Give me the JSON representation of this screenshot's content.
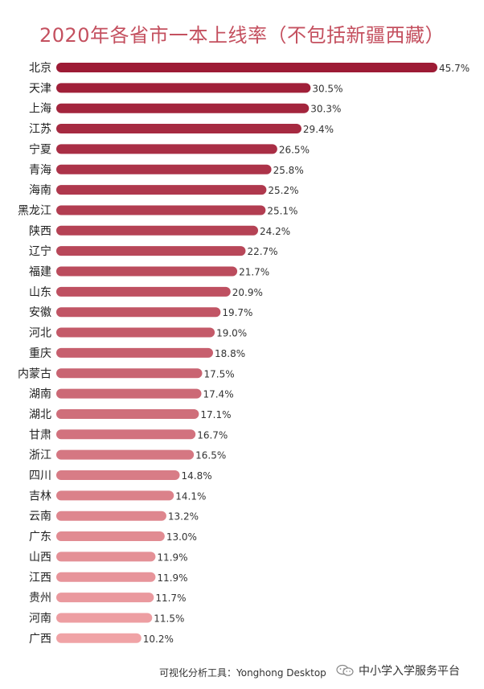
{
  "chart_data": {
    "type": "bar",
    "orientation": "horizontal",
    "title": "2020年各省市一本上线率（不包括新疆西藏）",
    "categories": [
      "北京",
      "天津",
      "上海",
      "江苏",
      "宁夏",
      "青海",
      "海南",
      "黑龙江",
      "陕西",
      "辽宁",
      "福建",
      "山东",
      "安徽",
      "河北",
      "重庆",
      "内蒙古",
      "湖南",
      "湖北",
      "甘肃",
      "浙江",
      "四川",
      "吉林",
      "云南",
      "广东",
      "山西",
      "江西",
      "贵州",
      "河南",
      "广西"
    ],
    "values": [
      45.7,
      30.5,
      30.3,
      29.4,
      26.5,
      25.8,
      25.2,
      25.1,
      24.2,
      22.7,
      21.7,
      20.9,
      19.7,
      19.0,
      18.8,
      17.5,
      17.4,
      17.1,
      16.7,
      16.5,
      14.8,
      14.1,
      13.2,
      13.0,
      11.9,
      11.9,
      11.7,
      11.5,
      10.2
    ],
    "labels": [
      "45.7%",
      "30.5%",
      "30.3%",
      "29.4%",
      "26.5%",
      "25.8%",
      "25.2%",
      "25.1%",
      "24.2%",
      "22.7%",
      "21.7%",
      "20.9%",
      "19.7%",
      "19.0%",
      "18.8%",
      "17.5%",
      "17.4%",
      "17.1%",
      "16.7%",
      "16.5%",
      "14.8%",
      "14.1%",
      "13.2%",
      "13.0%",
      "11.9%",
      "11.9%",
      "11.7%",
      "11.5%",
      "10.2%"
    ],
    "xlim": [
      0,
      45.7
    ],
    "grid": false,
    "colors": {
      "high": "#9d1b35",
      "low": "#f0a3a6"
    }
  },
  "footer": {
    "source": "可视化分析工具：Yonghong Desktop",
    "brand": "中小学入学服务平台"
  },
  "icons": {
    "brand_icon": "wechat-icon"
  }
}
